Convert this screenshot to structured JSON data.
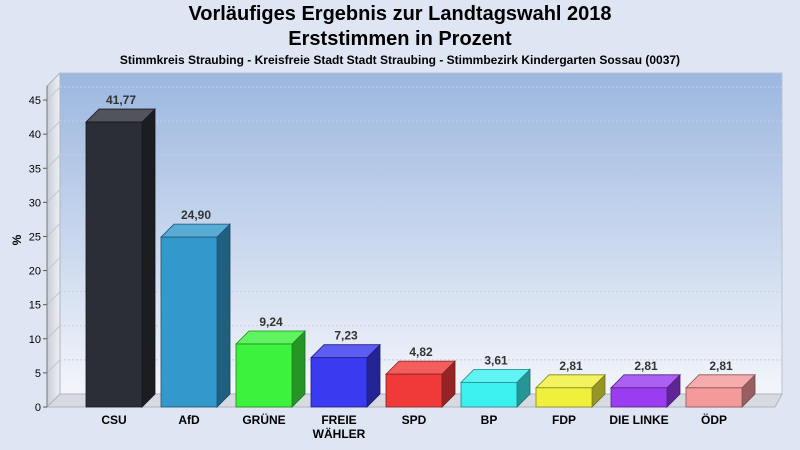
{
  "chart_data": {
    "type": "bar",
    "title": "Vorläufiges Ergebnis zur Landtagswahl 2018",
    "subtitle": "Erststimmen in Prozent",
    "caption": "Stimmkreis Straubing - Kreisfreie Stadt Stadt Straubing - Stimmbezirk Kindergarten Sossau (0037)",
    "ylabel": "%",
    "ylim": [
      0,
      47.5
    ],
    "yticks": [
      0,
      5,
      10,
      15,
      20,
      25,
      30,
      35,
      40,
      45
    ],
    "grid": true,
    "categories": [
      "CSU",
      "AfD",
      "GRÜNE",
      "FREIE\nWÄHLER",
      "SPD",
      "BP",
      "FDP",
      "DIE LINKE",
      "ÖDP"
    ],
    "values": [
      41.77,
      24.9,
      9.24,
      7.23,
      4.82,
      3.61,
      2.81,
      2.81,
      2.81
    ],
    "value_labels": [
      "41,77",
      "24,90",
      "9,24",
      "7,23",
      "4,82",
      "3,61",
      "2,81",
      "2,81",
      "2,81"
    ],
    "colors": [
      "#2b2e36",
      "#3399cc",
      "#3cf23c",
      "#3a3af0",
      "#f03a3a",
      "#3cf0f0",
      "#f0f03c",
      "#9a3cf0",
      "#f49a9a"
    ]
  }
}
